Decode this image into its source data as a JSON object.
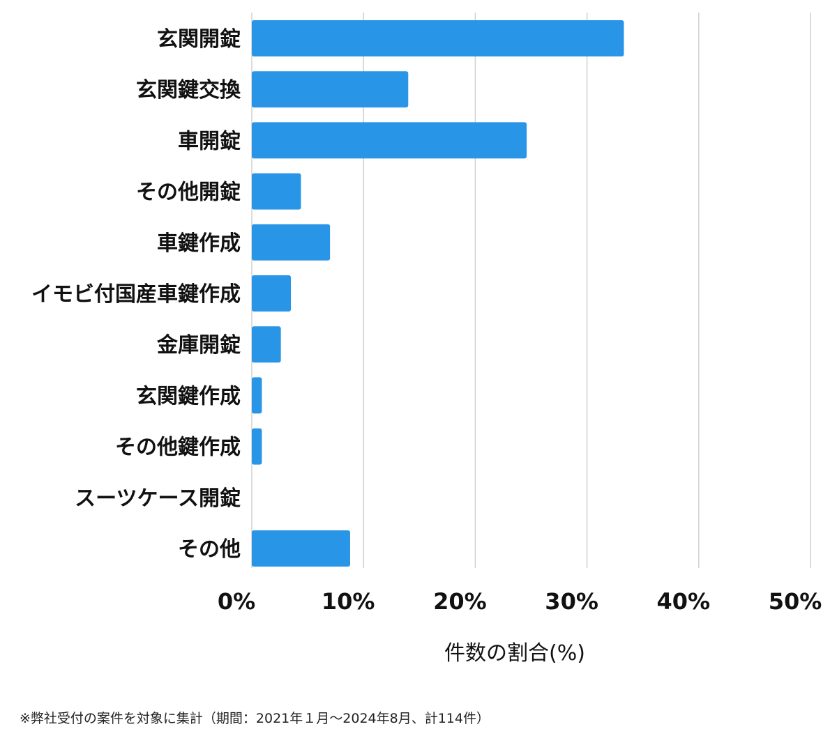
{
  "chart_data": {
    "type": "bar",
    "orientation": "horizontal",
    "categories": [
      "玄関開錠",
      "玄関鍵交換",
      "車開錠",
      "その他開錠",
      "車鍵作成",
      "イモビ付国産車鍵作成",
      "金庫開錠",
      "玄関鍵作成",
      "その他鍵作成",
      "スーツケース開錠",
      "その他"
    ],
    "values": [
      33.3,
      14.0,
      24.6,
      4.4,
      7.0,
      3.5,
      2.6,
      0.9,
      0.9,
      0.0,
      8.8
    ],
    "xlim": [
      0,
      50
    ],
    "x_ticks": [
      "0%",
      "10%",
      "20%",
      "30%",
      "40%",
      "50%"
    ],
    "xlabel": "件数の割合(%)",
    "ylabel": "",
    "grid": "vertical",
    "bar_color": "#2895e6"
  },
  "footnote": "※弊社受付の案件を対象に集計（期間：2021年１月〜2024年8月、計114件）"
}
